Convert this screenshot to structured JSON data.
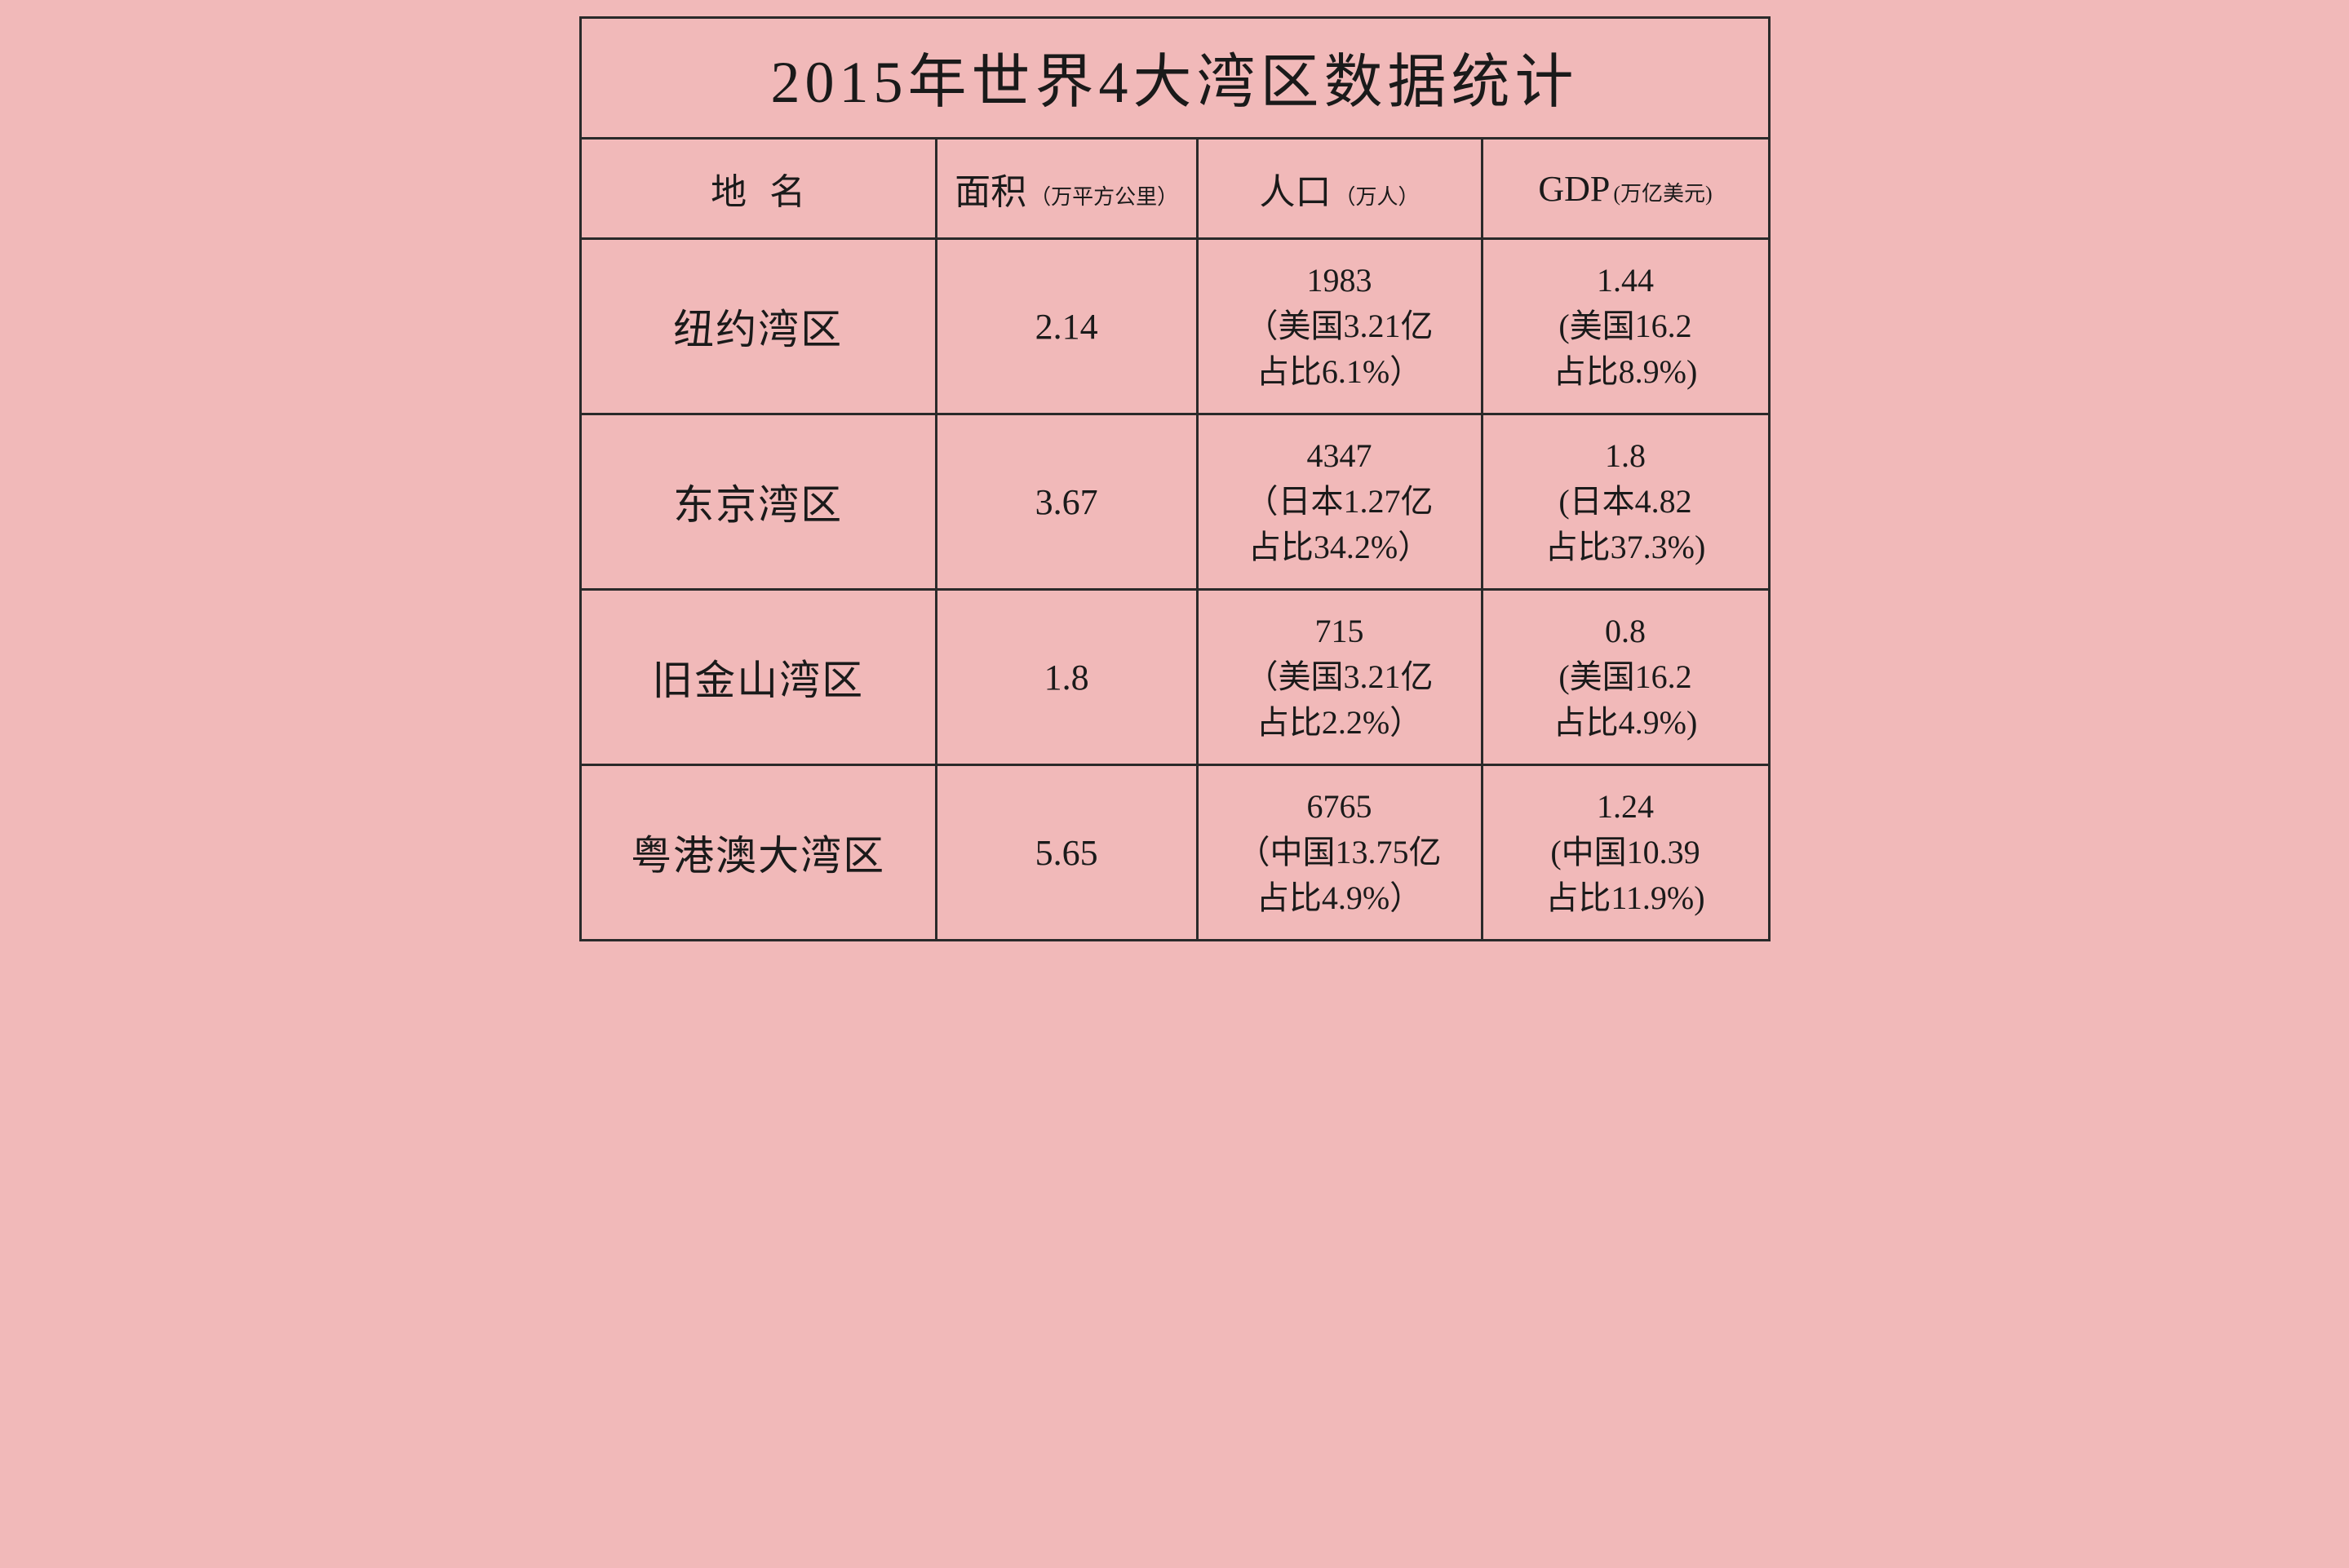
{
  "type": "table",
  "title": "2015年世界4大湾区数据统计",
  "background_color": "#f1b9b9",
  "border_color": "#2a2a2a",
  "text_color": "#1a1a1a",
  "title_fontsize": 72,
  "header_main_fontsize": 44,
  "header_sub_fontsize": 26,
  "name_fontsize": 50,
  "area_fontsize": 44,
  "cell_fontsize": 40,
  "columns": {
    "name": {
      "label": "地名",
      "sub": ""
    },
    "area": {
      "label": "面积",
      "sub": "（万平方公里）"
    },
    "pop": {
      "label": "人口",
      "sub": "（万人）"
    },
    "gdp": {
      "label": "GDP",
      "sub": "(万亿美元)"
    }
  },
  "column_widths_pct": {
    "name": 30,
    "area": 22,
    "pop": 24,
    "gdp": 24
  },
  "rows": [
    {
      "name": "纽约湾区",
      "area": "2.14",
      "pop": {
        "l1": "1983",
        "l2": "（美国3.21亿",
        "l3": "占比6.1%）"
      },
      "gdp": {
        "l1": "1.44",
        "l2": "(美国16.2",
        "l3": "占比8.9%)"
      }
    },
    {
      "name": "东京湾区",
      "area": "3.67",
      "pop": {
        "l1": "4347",
        "l2": "（日本1.27亿",
        "l3": "占比34.2%）"
      },
      "gdp": {
        "l1": "1.8",
        "l2": "(日本4.82",
        "l3": "占比37.3%)"
      }
    },
    {
      "name": "旧金山湾区",
      "area": "1.8",
      "pop": {
        "l1": "715",
        "l2": "（美国3.21亿",
        "l3": "占比2.2%）"
      },
      "gdp": {
        "l1": "0.8",
        "l2": "(美国16.2",
        "l3": "占比4.9%)"
      }
    },
    {
      "name": "粤港澳大湾区",
      "area": "5.65",
      "pop": {
        "l1": "6765",
        "l2": "（中国13.75亿",
        "l3": "占比4.9%）"
      },
      "gdp": {
        "l1": "1.24",
        "l2": "(中国10.39",
        "l3": "占比11.9%)"
      }
    }
  ]
}
